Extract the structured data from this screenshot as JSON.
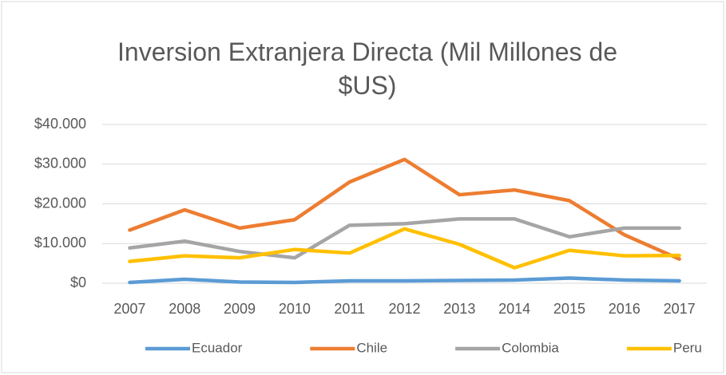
{
  "chart_data": {
    "type": "line",
    "title": "Inversion Extranjera Directa (Mil Millones de $US)",
    "categories": [
      "2007",
      "2008",
      "2009",
      "2010",
      "2011",
      "2012",
      "2013",
      "2014",
      "2015",
      "2016",
      "2017"
    ],
    "series": [
      {
        "name": "Ecuador",
        "color": "#5b9bd5",
        "values": [
          200,
          1000,
          300,
          200,
          600,
          600,
          700,
          800,
          1300,
          800,
          600
        ]
      },
      {
        "name": "Chile",
        "color": "#ed7d31",
        "values": [
          13400,
          18500,
          13900,
          16000,
          25500,
          31200,
          22300,
          23500,
          20800,
          12200,
          6100
        ]
      },
      {
        "name": "Colombia",
        "color": "#a5a5a5",
        "values": [
          8900,
          10600,
          8000,
          6400,
          14600,
          15000,
          16200,
          16200,
          11700,
          13900,
          13900
        ]
      },
      {
        "name": "Peru",
        "color": "#ffc000",
        "values": [
          5500,
          6900,
          6400,
          8500,
          7600,
          13700,
          9800,
          3900,
          8300,
          6900,
          7000
        ]
      }
    ],
    "ylim": [
      0,
      40000
    ],
    "yticks": [
      {
        "value": 0,
        "label": "$0"
      },
      {
        "value": 10000,
        "label": "$10.000"
      },
      {
        "value": 20000,
        "label": "$20.000"
      },
      {
        "value": 30000,
        "label": "$30.000"
      },
      {
        "value": 40000,
        "label": "$40.000"
      }
    ],
    "grid": true,
    "legend": "bottom"
  }
}
